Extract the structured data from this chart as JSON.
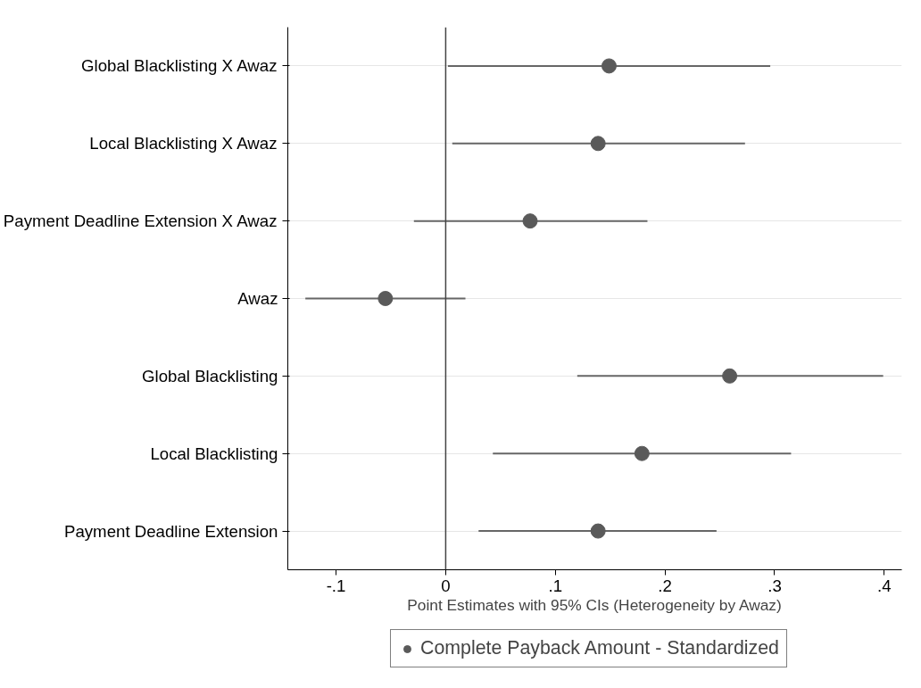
{
  "chart_data": {
    "type": "scatter",
    "categories": [
      "Global Blacklisting X Awaz",
      "Local Blacklisting X Awaz",
      "Payment Deadline Extension X Awaz",
      "Awaz",
      "Global Blacklisting",
      "Local Blacklisting",
      "Payment Deadline Extension"
    ],
    "series": [
      {
        "name": "Complete Payback Amount - Standardized",
        "color": "#5a5a5a",
        "values": [
          0.149,
          0.139,
          0.077,
          -0.055,
          0.259,
          0.179,
          0.139
        ],
        "errors": [
          [
            0.002,
            0.296
          ],
          [
            0.006,
            0.273
          ],
          [
            -0.029,
            0.184
          ],
          [
            -0.128,
            0.018
          ],
          [
            0.12,
            0.399
          ],
          [
            0.043,
            0.315
          ],
          [
            0.03,
            0.247
          ]
        ]
      }
    ],
    "xlabel": "Point Estimates with 95% CIs (Heterogeneity by Awaz)",
    "xlim": [
      -0.144,
      0.416
    ],
    "orientation": "horizontal",
    "xticks": [
      {
        "value": -0.1,
        "label": "-.1"
      },
      {
        "value": 0,
        "label": "0"
      },
      {
        "value": 0.1,
        "label": ".1"
      },
      {
        "value": 0.2,
        "label": ".2"
      },
      {
        "value": 0.3,
        "label": ".3"
      },
      {
        "value": 0.4,
        "label": ".4"
      }
    ],
    "ref_lines": [
      {
        "axis": "x",
        "value": 0,
        "color": "#444444"
      }
    ],
    "grid": "y",
    "legend": "bottom",
    "marker": "circle"
  }
}
